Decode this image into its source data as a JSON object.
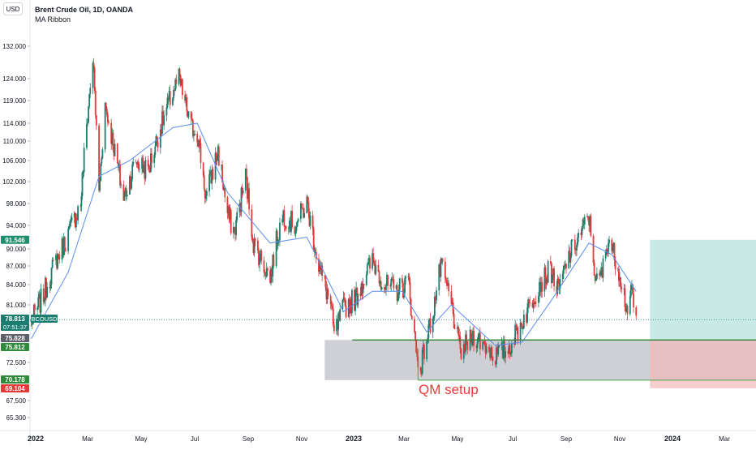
{
  "header": {
    "currency": "USD",
    "symbol_title": "Brent Crude Oil, 1D, OANDA",
    "indicator": "MA Ribbon"
  },
  "colors": {
    "up": "#26a69a",
    "down": "#ef5350",
    "candle_up": "#1b7d6f",
    "candle_down": "#e03b3b",
    "ma": "#5b8ef2",
    "zone": "#c6c8ce",
    "profit": "#b2dfdb",
    "loss": "#f4b9b9",
    "green_line": "#2e7d32",
    "last_price": "#1b7d6f"
  },
  "annotation": {
    "text": "QM setup",
    "color": "#ef3b3b"
  },
  "price_labels": [
    {
      "value": 91.546,
      "text": "91.546",
      "bg": "#1e8f6c"
    },
    {
      "value": 78.813,
      "text": "78.813",
      "bg": "#1b7d6f",
      "tag": "BCOUSD",
      "countdown": "07:51:37"
    },
    {
      "value": 75.828,
      "text": "75.828",
      "bg": "#5d606b"
    },
    {
      "value": 75.812,
      "text": "75.812",
      "bg": "#2e8b3a"
    },
    {
      "value": 70.178,
      "text": "70.178",
      "bg": "#2e8b3a"
    },
    {
      "value": 69.104,
      "text": "69.104",
      "bg": "#e53935"
    }
  ],
  "chart_data": {
    "type": "candlestick",
    "title": "Brent Crude Oil, 1D, OANDA",
    "y_axis_ticks": [
      132.0,
      124.0,
      119.0,
      114.0,
      110.0,
      106.0,
      102.0,
      98.0,
      94.0,
      90.0,
      87.0,
      84.0,
      81.0,
      72.5,
      67.5,
      65.3
    ],
    "y_tick_labels": [
      "132.000",
      "124.000",
      "119.000",
      "114.000",
      "110.000",
      "106.000",
      "102.000",
      "98.000",
      "94.000",
      "90.000",
      "87.000",
      "84.000",
      "81.000",
      "72.500",
      "67.500",
      "65.300"
    ],
    "x_axis_ticks": [
      "2022",
      "Mar",
      "May",
      "Jul",
      "Sep",
      "Nov",
      "2023",
      "Mar",
      "May",
      "Jul",
      "Sep",
      "Nov",
      "2024",
      "Mar"
    ],
    "x_axis_dates": [
      "2022-01-01",
      "2022-03-01",
      "2022-05-01",
      "2022-07-01",
      "2022-09-01",
      "2022-11-01",
      "2023-01-01",
      "2023-03-01",
      "2023-05-01",
      "2023-07-01",
      "2023-09-01",
      "2023-11-01",
      "2024-01-01",
      "2024-03-01"
    ],
    "price_keypoints": [
      [
        "2021-12-27",
        78.5
      ],
      [
        "2022-01-10",
        82.5
      ],
      [
        "2022-01-24",
        88.0
      ],
      [
        "2022-02-07",
        92.5
      ],
      [
        "2022-02-21",
        98.0
      ],
      [
        "2022-03-07",
        129.0
      ],
      [
        "2022-03-14",
        100.0
      ],
      [
        "2022-03-21",
        118.0
      ],
      [
        "2022-04-04",
        105.0
      ],
      [
        "2022-04-11",
        99.0
      ],
      [
        "2022-04-25",
        106.0
      ],
      [
        "2022-05-09",
        104.0
      ],
      [
        "2022-05-23",
        113.0
      ],
      [
        "2022-06-06",
        121.0
      ],
      [
        "2022-06-13",
        124.0
      ],
      [
        "2022-06-27",
        113.0
      ],
      [
        "2022-07-04",
        112.0
      ],
      [
        "2022-07-14",
        99.0
      ],
      [
        "2022-07-28",
        108.0
      ],
      [
        "2022-08-08",
        96.0
      ],
      [
        "2022-08-16",
        93.0
      ],
      [
        "2022-08-29",
        103.0
      ],
      [
        "2022-09-07",
        91.0
      ],
      [
        "2022-09-26",
        85.0
      ],
      [
        "2022-10-04",
        92.0
      ],
      [
        "2022-10-11",
        96.0
      ],
      [
        "2022-10-24",
        94.0
      ],
      [
        "2022-11-07",
        98.0
      ],
      [
        "2022-11-21",
        87.0
      ],
      [
        "2022-12-05",
        81.0
      ],
      [
        "2022-12-09",
        76.5
      ],
      [
        "2022-12-20",
        80.5
      ],
      [
        "2023-01-03",
        82.0
      ],
      [
        "2023-01-23",
        88.0
      ],
      [
        "2023-02-06",
        84.0
      ],
      [
        "2023-02-20",
        83.0
      ],
      [
        "2023-03-06",
        84.5
      ],
      [
        "2023-03-16",
        73.0
      ],
      [
        "2023-03-20",
        72.0
      ],
      [
        "2023-04-03",
        80.0
      ],
      [
        "2023-04-12",
        87.0
      ],
      [
        "2023-04-24",
        81.0
      ],
      [
        "2023-05-04",
        74.0
      ],
      [
        "2023-05-19",
        76.5
      ],
      [
        "2023-06-01",
        75.0
      ],
      [
        "2023-06-12",
        73.5
      ],
      [
        "2023-06-26",
        74.5
      ],
      [
        "2023-07-12",
        78.5
      ],
      [
        "2023-07-31",
        84.0
      ],
      [
        "2023-08-14",
        86.5
      ],
      [
        "2023-08-23",
        83.0
      ],
      [
        "2023-09-05",
        89.0
      ],
      [
        "2023-09-27",
        95.5
      ],
      [
        "2023-10-05",
        84.0
      ],
      [
        "2023-10-12",
        86.0
      ],
      [
        "2023-10-19",
        92.0
      ],
      [
        "2023-11-01",
        86.0
      ],
      [
        "2023-11-09",
        80.5
      ],
      [
        "2023-11-15",
        82.5
      ],
      [
        "2023-11-20",
        79.0
      ]
    ],
    "moving_average_keypoints": [
      [
        "2021-12-27",
        76.0
      ],
      [
        "2022-02-07",
        86.0
      ],
      [
        "2022-03-14",
        103.0
      ],
      [
        "2022-04-18",
        106.0
      ],
      [
        "2022-06-06",
        113.0
      ],
      [
        "2022-07-04",
        114.0
      ],
      [
        "2022-08-08",
        100.0
      ],
      [
        "2022-09-26",
        91.0
      ],
      [
        "2022-11-07",
        92.0
      ],
      [
        "2022-12-20",
        80.0
      ],
      [
        "2023-01-23",
        83.0
      ],
      [
        "2023-02-27",
        83.0
      ],
      [
        "2023-03-27",
        77.0
      ],
      [
        "2023-04-24",
        81.0
      ],
      [
        "2023-06-12",
        75.0
      ],
      [
        "2023-07-12",
        75.5
      ],
      [
        "2023-08-14",
        81.5
      ],
      [
        "2023-09-27",
        91.0
      ],
      [
        "2023-10-23",
        89.0
      ],
      [
        "2023-11-20",
        83.0
      ]
    ],
    "qm_zone": {
      "x_start": "2022-11-28",
      "x_end": "2024-04-15",
      "y_top": 75.812,
      "y_bottom": 70.178
    },
    "position": {
      "x_start": "2023-12-06",
      "x_end": "2024-04-15",
      "entry": 75.812,
      "target": 91.546,
      "stop": 69.104
    },
    "last_price": 78.813
  }
}
